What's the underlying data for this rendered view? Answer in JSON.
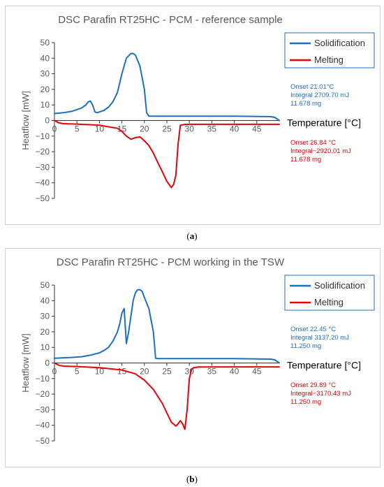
{
  "colors": {
    "solidification": "#1f6fbf",
    "melting": "#e8000b",
    "axis": "#333333",
    "text": "#595959"
  },
  "captions": {
    "a_label": "a",
    "b_label": "b"
  },
  "chart_data": [
    {
      "type": "line",
      "title": "DSC Parafin RT25HC - PCM - reference sample",
      "xlabel": "Temperature [°C]",
      "ylabel": "Heatflow [mW]",
      "xlim": [
        0,
        50
      ],
      "ylim": [
        -50,
        50
      ],
      "xticks": [
        0,
        5,
        10,
        15,
        20,
        25,
        30,
        35,
        40,
        45
      ],
      "yticks": [
        50,
        40,
        30,
        20,
        10,
        0,
        -10,
        -20,
        -30,
        -40,
        -50
      ],
      "grid": false,
      "legend": {
        "position": "top-right",
        "entries": [
          "Solidification",
          "Melting"
        ]
      },
      "annotations": {
        "solid": [
          "Onset 21.01°C",
          "Integral 2709.70 mJ",
          "11.678 mg"
        ],
        "melt": [
          "Onset 26.84 °C",
          "Integral−2920.01 mJ",
          "11.678 mg"
        ]
      },
      "series": [
        {
          "name": "Solidification",
          "x": [
            0,
            2,
            4,
            6,
            7,
            7.5,
            8,
            8.5,
            9,
            9.5,
            10,
            11,
            12,
            13,
            14,
            15,
            16,
            17,
            17.5,
            18,
            19,
            20,
            20.5,
            21,
            22,
            25,
            30,
            40,
            48,
            49,
            50
          ],
          "y": [
            4.5,
            5,
            6,
            8,
            10,
            12,
            12.5,
            10,
            5.5,
            5,
            5.5,
            6.5,
            8.5,
            12,
            18,
            30,
            40,
            43,
            43,
            42,
            35,
            20,
            5,
            2.8,
            2.8,
            2.8,
            2.8,
            2.8,
            2.5,
            2,
            0
          ]
        },
        {
          "name": "Melting",
          "x": [
            0,
            1,
            2,
            5,
            10,
            14,
            15,
            16,
            17,
            18,
            19,
            20,
            21,
            22,
            23,
            24,
            25,
            26,
            26.5,
            27,
            27.5,
            28,
            29,
            30,
            40,
            50
          ],
          "y": [
            0,
            -1.5,
            -2,
            -2.3,
            -3,
            -5,
            -7,
            -10,
            -12,
            -11,
            -10.5,
            -13,
            -16,
            -21,
            -27,
            -33,
            -39,
            -43,
            -41,
            -35,
            -15,
            -3,
            -2.5,
            -2.4,
            -2.4,
            -2.4
          ]
        }
      ]
    },
    {
      "type": "line",
      "title": "DSC Parafin RT25HC - PCM working in the TSW",
      "xlabel": "Temperature [°C]",
      "ylabel": "Heatflow [mW]",
      "xlim": [
        0,
        50
      ],
      "ylim": [
        -50,
        50
      ],
      "xticks": [
        0,
        5,
        10,
        15,
        20,
        25,
        30,
        35,
        40,
        45
      ],
      "yticks": [
        50,
        40,
        30,
        20,
        10,
        0,
        -10,
        -20,
        -30,
        -40,
        -50
      ],
      "grid": false,
      "legend": {
        "position": "top-right",
        "entries": [
          "Solidification",
          "Melting"
        ]
      },
      "annotations": {
        "solid": [
          "Onset 22.45 °C",
          "Integral 3137.20 mJ",
          "11.250 mg"
        ],
        "melt": [
          "Onset 29.89 °C",
          "Integral−3170.43 mJ",
          "11.250 mg"
        ]
      },
      "series": [
        {
          "name": "Solidification",
          "x": [
            0,
            2,
            4,
            6,
            8,
            10,
            11,
            12,
            13,
            14,
            14.5,
            15,
            15.5,
            16,
            16.5,
            17,
            17.5,
            18,
            18.5,
            19,
            19.5,
            20,
            21,
            22,
            22.5,
            23,
            25,
            30,
            40,
            48,
            49,
            50
          ],
          "y": [
            3,
            3.3,
            3.6,
            4,
            5,
            6.5,
            8,
            10,
            14,
            20,
            25,
            32,
            35,
            12.5,
            20,
            30,
            40,
            45,
            47,
            47,
            46,
            42,
            35,
            20,
            3,
            2.8,
            2.8,
            2.8,
            2.8,
            2.5,
            2,
            0
          ]
        },
        {
          "name": "Melting",
          "x": [
            0,
            1,
            2,
            5,
            10,
            15,
            18,
            20,
            22,
            24,
            25,
            26,
            27,
            27.5,
            28,
            28.5,
            29,
            29.5,
            30,
            30.5,
            31,
            32,
            40,
            50
          ],
          "y": [
            0,
            -1.5,
            -2,
            -2.3,
            -3,
            -4.5,
            -7,
            -11,
            -17,
            -26,
            -32,
            -38,
            -40.5,
            -39,
            -37,
            -39,
            -42.5,
            -30,
            -10,
            -4,
            -3,
            -2.6,
            -2.5,
            -2.5
          ]
        }
      ]
    }
  ]
}
